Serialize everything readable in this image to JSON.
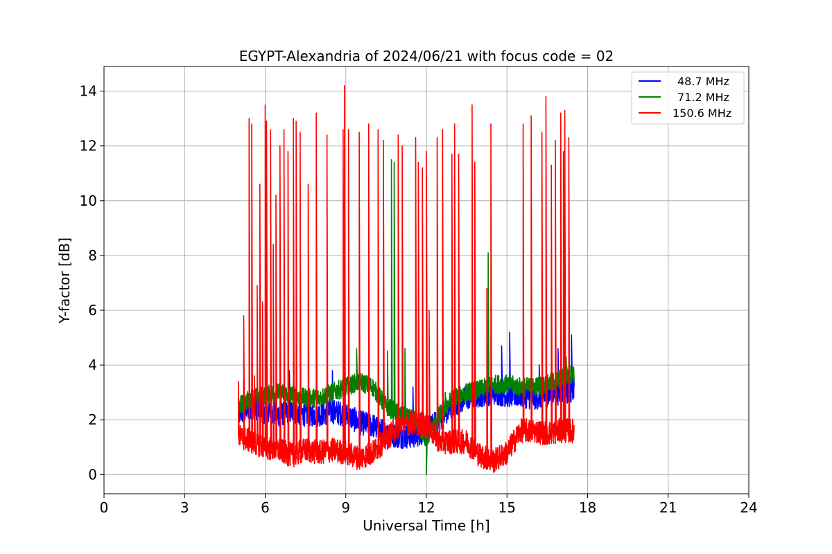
{
  "chart_data": {
    "type": "line",
    "title": "EGYPT-Alexandria of 2024/06/21 with focus code = 02",
    "xlabel": "Universal Time [h]",
    "ylabel": "Y-factor [dB]",
    "xlim": [
      0,
      24
    ],
    "ylim": [
      -0.7,
      14.9
    ],
    "xticks": [
      0,
      3,
      6,
      9,
      12,
      15,
      18,
      21,
      24
    ],
    "yticks": [
      0,
      2,
      4,
      6,
      8,
      10,
      12,
      14
    ],
    "grid": true,
    "legend_position": "top-right",
    "series": [
      {
        "name": "48.7 MHz",
        "color": "#0000ff",
        "baseline": [
          [
            5.0,
            2.2
          ],
          [
            5.5,
            2.5
          ],
          [
            6.0,
            2.3
          ],
          [
            6.5,
            2.2
          ],
          [
            7.0,
            2.3
          ],
          [
            7.5,
            2.2
          ],
          [
            8.0,
            2.2
          ],
          [
            8.5,
            2.3
          ],
          [
            9.0,
            2.2
          ],
          [
            9.5,
            1.9
          ],
          [
            10.0,
            1.8
          ],
          [
            10.5,
            1.5
          ],
          [
            11.0,
            1.4
          ],
          [
            11.5,
            1.4
          ],
          [
            12.0,
            1.6
          ],
          [
            12.5,
            2.0
          ],
          [
            13.0,
            2.5
          ],
          [
            13.5,
            2.8
          ],
          [
            14.0,
            2.9
          ],
          [
            14.5,
            3.0
          ],
          [
            15.0,
            2.9
          ],
          [
            15.5,
            2.9
          ],
          [
            16.0,
            2.8
          ],
          [
            16.5,
            2.9
          ],
          [
            17.0,
            3.0
          ],
          [
            17.5,
            3.1
          ]
        ],
        "spikes": [
          [
            5.2,
            3.4
          ],
          [
            6.9,
            3.8
          ],
          [
            8.5,
            3.8
          ],
          [
            11.5,
            3.2
          ],
          [
            14.8,
            4.7
          ],
          [
            15.1,
            5.2
          ],
          [
            16.2,
            4.0
          ],
          [
            16.9,
            4.6
          ],
          [
            17.4,
            5.1
          ]
        ]
      },
      {
        "name": "71.2 MHz",
        "color": "#008000",
        "baseline": [
          [
            5.0,
            2.5
          ],
          [
            5.5,
            2.8
          ],
          [
            6.0,
            2.9
          ],
          [
            6.5,
            3.0
          ],
          [
            7.0,
            2.9
          ],
          [
            7.5,
            2.8
          ],
          [
            8.0,
            2.8
          ],
          [
            8.5,
            3.0
          ],
          [
            9.0,
            3.2
          ],
          [
            9.5,
            3.4
          ],
          [
            10.0,
            3.2
          ],
          [
            10.5,
            2.5
          ],
          [
            11.0,
            2.2
          ],
          [
            11.5,
            2.0
          ],
          [
            12.0,
            1.3
          ],
          [
            12.5,
            2.2
          ],
          [
            13.0,
            2.8
          ],
          [
            13.5,
            3.0
          ],
          [
            14.0,
            3.1
          ],
          [
            14.5,
            3.3
          ],
          [
            15.0,
            3.3
          ],
          [
            15.5,
            3.2
          ],
          [
            16.0,
            3.2
          ],
          [
            16.5,
            3.3
          ],
          [
            17.0,
            3.5
          ],
          [
            17.5,
            3.7
          ]
        ],
        "spikes": [
          [
            9.4,
            4.6
          ],
          [
            10.55,
            4.5
          ],
          [
            10.7,
            11.5
          ],
          [
            10.8,
            11.4
          ],
          [
            11.2,
            4.6
          ],
          [
            12.0,
            0.0
          ],
          [
            12.7,
            3.0
          ],
          [
            14.3,
            8.1
          ],
          [
            17.2,
            4.3
          ]
        ]
      },
      {
        "name": "150.6 MHz",
        "color": "#ff0000",
        "baseline": [
          [
            5.0,
            1.4
          ],
          [
            5.5,
            1.2
          ],
          [
            6.0,
            1.0
          ],
          [
            6.5,
            0.9
          ],
          [
            7.0,
            0.7
          ],
          [
            7.5,
            0.9
          ],
          [
            8.0,
            0.8
          ],
          [
            8.5,
            0.9
          ],
          [
            9.0,
            0.8
          ],
          [
            9.5,
            0.6
          ],
          [
            10.0,
            0.8
          ],
          [
            10.5,
            1.3
          ],
          [
            11.0,
            1.8
          ],
          [
            11.5,
            1.9
          ],
          [
            12.0,
            1.8
          ],
          [
            12.5,
            1.2
          ],
          [
            13.0,
            1.2
          ],
          [
            13.5,
            1.2
          ],
          [
            14.0,
            0.7
          ],
          [
            14.5,
            0.5
          ],
          [
            15.0,
            0.8
          ],
          [
            15.5,
            1.6
          ],
          [
            16.0,
            1.6
          ],
          [
            16.5,
            1.5
          ],
          [
            17.0,
            1.6
          ],
          [
            17.5,
            1.6
          ]
        ],
        "spikes": [
          [
            5.0,
            3.4
          ],
          [
            5.2,
            5.8
          ],
          [
            5.4,
            13.0
          ],
          [
            5.5,
            12.8
          ],
          [
            5.6,
            3.6
          ],
          [
            5.7,
            6.9
          ],
          [
            5.8,
            10.6
          ],
          [
            5.9,
            6.3
          ],
          [
            6.0,
            13.5
          ],
          [
            6.05,
            12.9
          ],
          [
            6.2,
            12.6
          ],
          [
            6.3,
            8.4
          ],
          [
            6.4,
            10.2
          ],
          [
            6.55,
            12.0
          ],
          [
            6.7,
            12.6
          ],
          [
            6.85,
            11.8
          ],
          [
            7.05,
            13.0
          ],
          [
            7.15,
            12.9
          ],
          [
            7.3,
            12.5
          ],
          [
            7.6,
            10.6
          ],
          [
            7.9,
            13.2
          ],
          [
            8.3,
            12.4
          ],
          [
            8.9,
            12.6
          ],
          [
            8.95,
            14.2
          ],
          [
            9.1,
            12.6
          ],
          [
            9.5,
            12.5
          ],
          [
            9.85,
            12.8
          ],
          [
            10.2,
            12.6
          ],
          [
            10.4,
            12.2
          ],
          [
            10.95,
            12.4
          ],
          [
            11.1,
            12.0
          ],
          [
            11.6,
            12.3
          ],
          [
            11.7,
            11.4
          ],
          [
            11.85,
            11.2
          ],
          [
            12.0,
            11.8
          ],
          [
            12.1,
            6.0
          ],
          [
            12.4,
            12.3
          ],
          [
            12.6,
            12.6
          ],
          [
            12.95,
            11.7
          ],
          [
            13.05,
            12.8
          ],
          [
            13.2,
            11.7
          ],
          [
            13.7,
            13.5
          ],
          [
            13.8,
            11.4
          ],
          [
            14.25,
            6.8
          ],
          [
            14.4,
            12.8
          ],
          [
            15.6,
            12.8
          ],
          [
            15.9,
            13.1
          ],
          [
            16.3,
            12.5
          ],
          [
            16.45,
            13.8
          ],
          [
            16.65,
            11.3
          ],
          [
            16.8,
            12.2
          ],
          [
            17.0,
            13.2
          ],
          [
            17.1,
            11.8
          ],
          [
            17.15,
            13.3
          ],
          [
            17.3,
            12.3
          ]
        ]
      }
    ]
  }
}
